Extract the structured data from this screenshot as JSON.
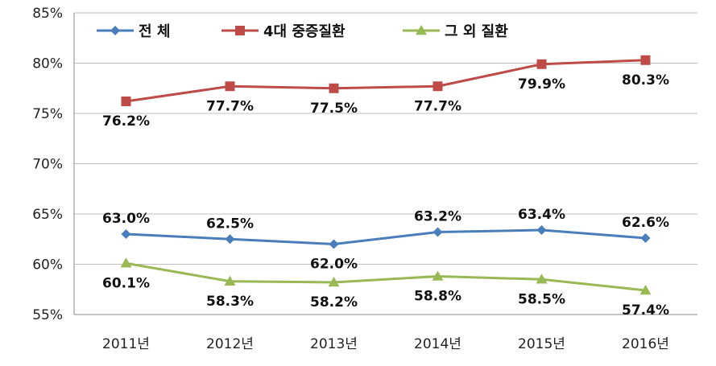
{
  "chart_data": {
    "type": "line",
    "title": "",
    "xlabel": "",
    "ylabel": "",
    "categories": [
      "2011년",
      "2012년",
      "2013년",
      "2014년",
      "2015년",
      "2016년"
    ],
    "ylim": [
      55,
      85
    ],
    "yticks": [
      55,
      60,
      65,
      70,
      75,
      80,
      85
    ],
    "ytick_labels": [
      "55%",
      "60%",
      "65%",
      "70%",
      "75%",
      "80%",
      "85%"
    ],
    "grid": true,
    "legend_position": "top-left",
    "series": [
      {
        "name": "전 체",
        "color": "#4a7ebb",
        "marker": "diamond",
        "values": [
          63.0,
          62.5,
          62.0,
          63.2,
          63.4,
          62.6
        ],
        "labels": [
          "63.0%",
          "62.5%",
          "62.0%",
          "63.2%",
          "63.4%",
          "62.6%"
        ]
      },
      {
        "name": "4대 중증질환",
        "color": "#be4b48",
        "marker": "square",
        "values": [
          76.2,
          77.7,
          77.5,
          77.7,
          79.9,
          80.3
        ],
        "labels": [
          "76.2%",
          "77.7%",
          "77.5%",
          "77.7%",
          "79.9%",
          "80.3%"
        ]
      },
      {
        "name": "그 외 질환",
        "color": "#98b954",
        "marker": "triangle",
        "values": [
          60.1,
          58.3,
          58.2,
          58.8,
          58.5,
          57.4
        ],
        "labels": [
          "60.1%",
          "58.3%",
          "58.2%",
          "58.8%",
          "58.5%",
          "57.4%"
        ]
      }
    ]
  }
}
